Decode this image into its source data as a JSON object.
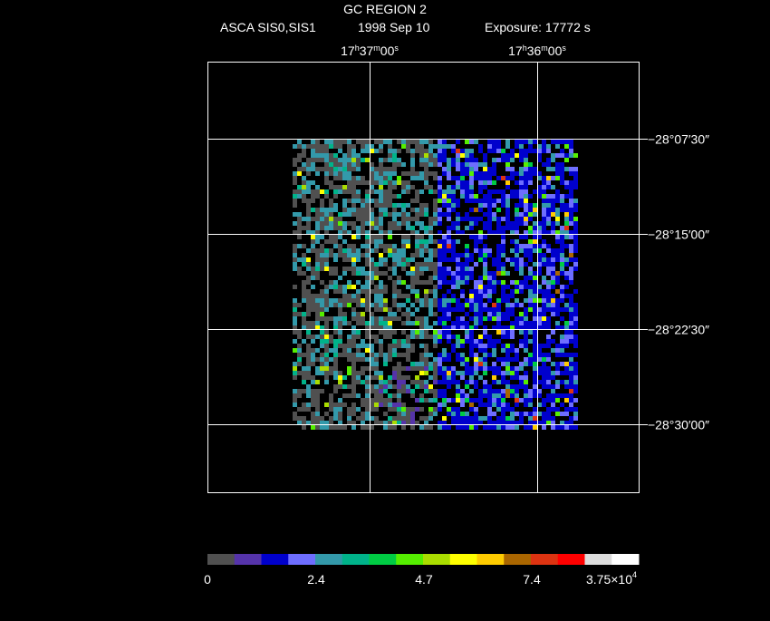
{
  "header": {
    "title": "GC REGION 2",
    "instrument": "ASCA SIS0,SIS1",
    "date": "1998 Sep 10",
    "exposure": "Exposure: 17772 s"
  },
  "ra_labels": [
    [
      "17",
      "h",
      "37",
      "m",
      "00",
      "s"
    ],
    [
      "17",
      "h",
      "36",
      "m",
      "00",
      "s"
    ]
  ],
  "dec_labels": [
    "−28°07′30″",
    "−28°15′00″",
    "−28°22′30″",
    "−28°30′00″"
  ],
  "colorbar": {
    "colors": [
      "#505050",
      "#5533aa",
      "#0000cc",
      "#6e6eff",
      "#3399aa",
      "#00b38a",
      "#00cc44",
      "#55ee00",
      "#aadd00",
      "#ffff00",
      "#ffcc00",
      "#aa6600",
      "#dd3311",
      "#ff0000",
      "#dddddd",
      "#ffffff"
    ],
    "labels": [
      "0",
      "2.4",
      "4.7",
      "7.4",
      [
        "3.75×10",
        "4"
      ]
    ]
  }
}
